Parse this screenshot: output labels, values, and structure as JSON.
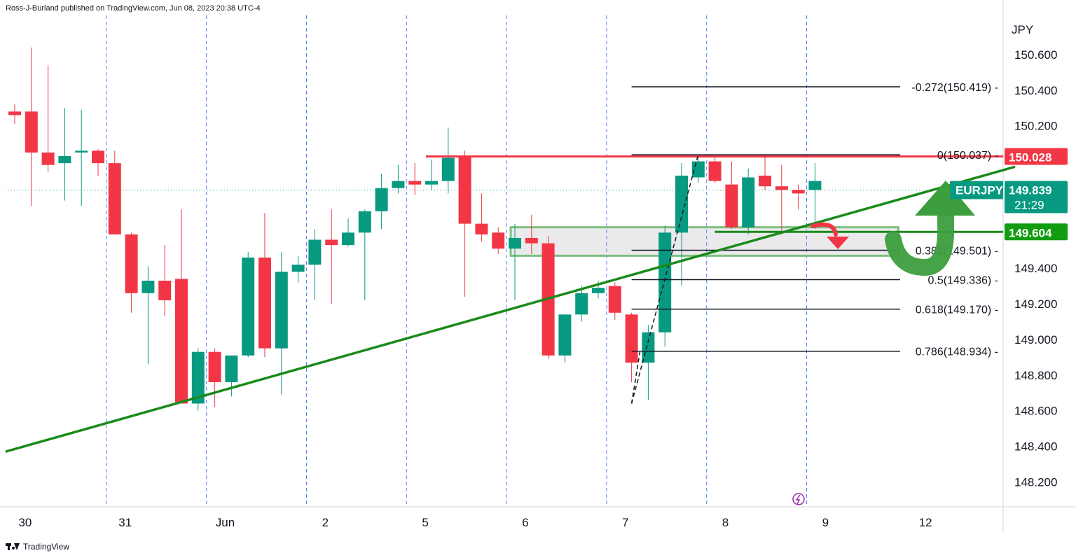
{
  "header": {
    "publisher_line": "Ross-J-Burland published on TradingView.com, Jun 08, 2023 20:38 UTC-4"
  },
  "footer": {
    "brand": "TradingView"
  },
  "chart_data": {
    "type": "candlestick",
    "symbol": "EURJPY",
    "currency_label": "JPY",
    "ylim": [
      148.06,
      150.82
    ],
    "y_ticks": [
      "150.600",
      "150.400",
      "150.200",
      "149.400",
      "149.200",
      "149.000",
      "148.800",
      "148.600",
      "148.400",
      "148.200"
    ],
    "x_labels": [
      {
        "label": "30",
        "slot": 1
      },
      {
        "label": "31",
        "slot": 7
      },
      {
        "label": "Jun",
        "slot": 13
      },
      {
        "label": "2",
        "slot": 19
      },
      {
        "label": "5",
        "slot": 25
      },
      {
        "label": "6",
        "slot": 31
      },
      {
        "label": "7",
        "slot": 37
      },
      {
        "label": "8",
        "slot": 43
      },
      {
        "label": "9",
        "slot": 49
      },
      {
        "label": "12",
        "slot": 55
      }
    ],
    "session_separators": [
      5,
      11,
      17,
      23,
      29,
      35,
      41,
      47
    ],
    "candles": [
      {
        "o": 150.28,
        "h": 150.32,
        "l": 150.21,
        "c": 150.26
      },
      {
        "o": 150.28,
        "h": 150.64,
        "l": 149.75,
        "c": 150.05
      },
      {
        "o": 150.05,
        "h": 150.54,
        "l": 149.94,
        "c": 149.98
      },
      {
        "o": 149.99,
        "h": 150.3,
        "l": 149.78,
        "c": 150.03
      },
      {
        "o": 150.05,
        "h": 150.29,
        "l": 149.75,
        "c": 150.06
      },
      {
        "o": 150.06,
        "h": 150.07,
        "l": 149.92,
        "c": 149.99
      },
      {
        "o": 149.99,
        "h": 150.06,
        "l": 149.6,
        "c": 149.59
      },
      {
        "o": 149.59,
        "h": 149.6,
        "l": 149.15,
        "c": 149.26
      },
      {
        "o": 149.26,
        "h": 149.41,
        "l": 148.86,
        "c": 149.33
      },
      {
        "o": 149.33,
        "h": 149.53,
        "l": 149.13,
        "c": 149.22
      },
      {
        "o": 149.34,
        "h": 149.73,
        "l": 148.64,
        "c": 148.64
      },
      {
        "o": 148.64,
        "h": 148.95,
        "l": 148.6,
        "c": 148.93
      },
      {
        "o": 148.93,
        "h": 148.95,
        "l": 148.62,
        "c": 148.76
      },
      {
        "o": 148.76,
        "h": 148.9,
        "l": 148.68,
        "c": 148.91
      },
      {
        "o": 148.91,
        "h": 149.49,
        "l": 148.9,
        "c": 149.46
      },
      {
        "o": 149.46,
        "h": 149.71,
        "l": 148.9,
        "c": 148.95
      },
      {
        "o": 148.95,
        "h": 149.49,
        "l": 148.69,
        "c": 149.38
      },
      {
        "o": 149.38,
        "h": 149.47,
        "l": 149.32,
        "c": 149.42
      },
      {
        "o": 149.42,
        "h": 149.62,
        "l": 149.22,
        "c": 149.56
      },
      {
        "o": 149.56,
        "h": 149.73,
        "l": 149.2,
        "c": 149.53
      },
      {
        "o": 149.53,
        "h": 149.68,
        "l": 149.52,
        "c": 149.6
      },
      {
        "o": 149.6,
        "h": 149.73,
        "l": 149.22,
        "c": 149.72
      },
      {
        "o": 149.72,
        "h": 149.93,
        "l": 149.62,
        "c": 149.85
      },
      {
        "o": 149.85,
        "h": 149.98,
        "l": 149.82,
        "c": 149.89
      },
      {
        "o": 149.89,
        "h": 149.99,
        "l": 149.81,
        "c": 149.87
      },
      {
        "o": 149.87,
        "h": 150.01,
        "l": 149.84,
        "c": 149.89
      },
      {
        "o": 149.89,
        "h": 150.19,
        "l": 149.82,
        "c": 150.02
      },
      {
        "o": 150.03,
        "h": 150.06,
        "l": 149.24,
        "c": 149.65
      },
      {
        "o": 149.65,
        "h": 149.82,
        "l": 149.55,
        "c": 149.59
      },
      {
        "o": 149.6,
        "h": 149.63,
        "l": 149.48,
        "c": 149.51
      },
      {
        "o": 149.51,
        "h": 149.65,
        "l": 149.22,
        "c": 149.57
      },
      {
        "o": 149.57,
        "h": 149.7,
        "l": 149.48,
        "c": 149.54
      },
      {
        "o": 149.54,
        "h": 149.58,
        "l": 148.89,
        "c": 148.91
      },
      {
        "o": 148.91,
        "h": 149.13,
        "l": 148.87,
        "c": 149.14
      },
      {
        "o": 149.14,
        "h": 149.3,
        "l": 149.1,
        "c": 149.26
      },
      {
        "o": 149.26,
        "h": 149.33,
        "l": 149.23,
        "c": 149.29
      },
      {
        "o": 149.3,
        "h": 149.32,
        "l": 149.11,
        "c": 149.15
      },
      {
        "o": 149.14,
        "h": 149.15,
        "l": 148.76,
        "c": 148.87
      },
      {
        "o": 148.87,
        "h": 149.08,
        "l": 148.66,
        "c": 149.04
      },
      {
        "o": 149.04,
        "h": 149.64,
        "l": 148.96,
        "c": 149.6
      },
      {
        "o": 149.6,
        "h": 149.99,
        "l": 149.3,
        "c": 149.92
      },
      {
        "o": 149.91,
        "h": 150.03,
        "l": 149.88,
        "c": 150.0
      },
      {
        "o": 150.0,
        "h": 150.03,
        "l": 149.88,
        "c": 149.89
      },
      {
        "o": 149.87,
        "h": 150.0,
        "l": 149.62,
        "c": 149.63
      },
      {
        "o": 149.63,
        "h": 149.96,
        "l": 149.59,
        "c": 149.91
      },
      {
        "o": 149.92,
        "h": 150.04,
        "l": 149.84,
        "c": 149.86
      },
      {
        "o": 149.86,
        "h": 149.98,
        "l": 149.59,
        "c": 149.84
      },
      {
        "o": 149.84,
        "h": 149.87,
        "l": 149.73,
        "c": 149.82
      },
      {
        "o": 149.84,
        "h": 149.99,
        "l": 149.62,
        "c": 149.89
      }
    ],
    "fib_levels": [
      {
        "label": "-0.272(150.419)",
        "price": 150.419
      },
      {
        "label": "0(150.037)",
        "price": 150.037
      },
      {
        "label": "0.382(149.501)",
        "price": 149.501
      },
      {
        "label": "0.5(149.336)",
        "price": 149.336
      },
      {
        "label": "0.618(149.170)",
        "price": 149.17
      },
      {
        "label": "0.786(148.934)",
        "price": 148.934
      }
    ],
    "fib_start_slot": 37,
    "price_tags": [
      {
        "label": "150.028",
        "price": 150.028,
        "color": "#f23645"
      },
      {
        "label": "149.839",
        "price": 149.839,
        "color": "#089981"
      },
      {
        "label": "149.604",
        "price": 149.604,
        "color": "#119c11"
      }
    ],
    "symbol_tag": {
      "name": "EURJPY",
      "countdown": "21:29"
    },
    "resistance_price": 150.028,
    "support_price": 149.604,
    "trendline": {
      "slot_start": 0.0,
      "price_start": 148.37,
      "slot_end": 60,
      "price_end": 149.97
    },
    "zone": {
      "slot_start": 30,
      "slot_end": 53,
      "price_high": 149.63,
      "price_low": 149.47
    },
    "colors": {
      "up": "#089981",
      "down": "#f23645",
      "trend": "#1a8a1a",
      "separator": "#2962ff"
    }
  }
}
